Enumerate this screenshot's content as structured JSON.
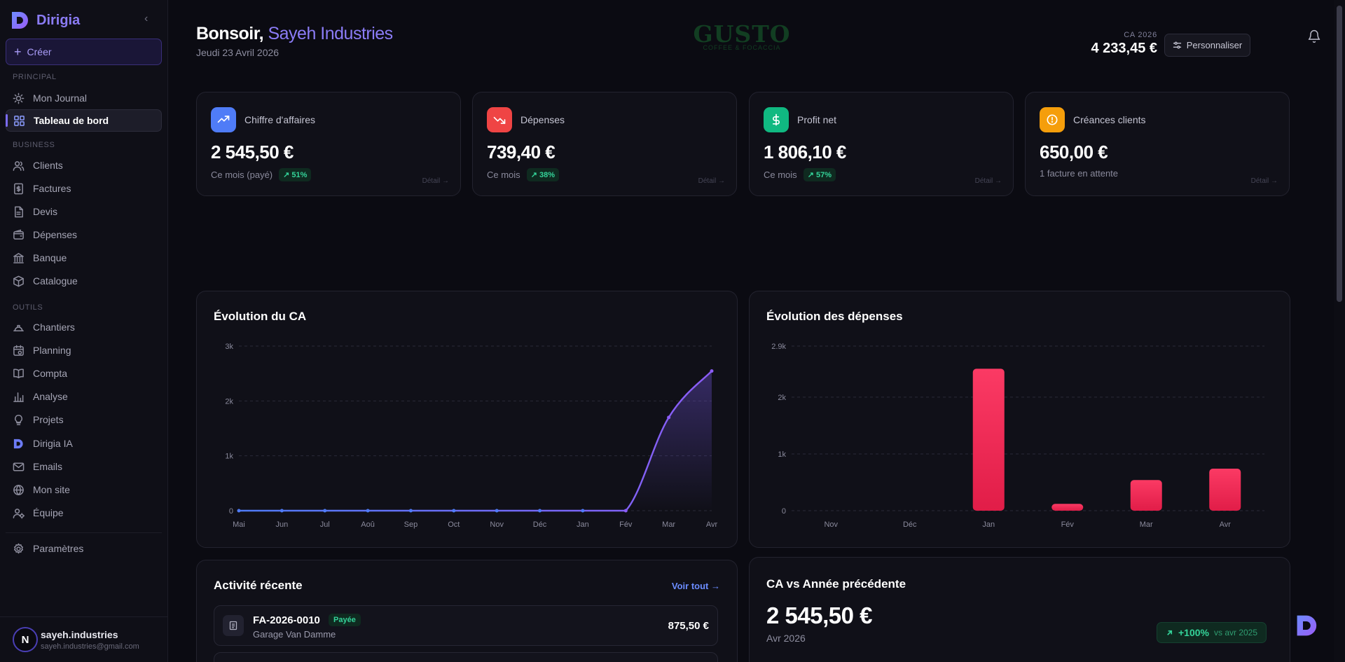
{
  "brand": {
    "name": "Dirigia"
  },
  "sidebar": {
    "create_label": "Créer",
    "sections": {
      "principal": "PRINCIPAL",
      "business": "BUSINESS",
      "outils": "OUTILS"
    },
    "items": [
      {
        "label": "Mon Journal",
        "icon": "sun-icon"
      },
      {
        "label": "Tableau de bord",
        "icon": "dashboard-icon",
        "active": true
      },
      {
        "label": "Clients",
        "icon": "users-icon"
      },
      {
        "label": "Factures",
        "icon": "invoice-icon"
      },
      {
        "label": "Devis",
        "icon": "document-icon"
      },
      {
        "label": "Dépenses",
        "icon": "wallet-icon"
      },
      {
        "label": "Banque",
        "icon": "bank-icon"
      },
      {
        "label": "Catalogue",
        "icon": "box-icon"
      },
      {
        "label": "Chantiers",
        "icon": "helmet-icon"
      },
      {
        "label": "Planning",
        "icon": "calendar-icon"
      },
      {
        "label": "Compta",
        "icon": "book-icon"
      },
      {
        "label": "Analyse",
        "icon": "bar-chart-icon"
      },
      {
        "label": "Projets",
        "icon": "lightbulb-icon"
      },
      {
        "label": "Dirigia IA",
        "icon": "dirigia-logo-icon"
      },
      {
        "label": "Emails",
        "icon": "mail-icon"
      },
      {
        "label": "Mon site",
        "icon": "globe-icon"
      },
      {
        "label": "Équipe",
        "icon": "team-icon"
      },
      {
        "label": "Paramètres",
        "icon": "gear-icon"
      }
    ],
    "user": {
      "initial": "N",
      "name": "sayeh.industries",
      "email": "sayeh.industries@gmail.com"
    }
  },
  "header": {
    "greeting": "Bonsoir,",
    "company": "Sayeh Industries",
    "date": "Jeudi 23 Avril 2026",
    "logo_word": "GUSTO",
    "logo_sub": "COFFEE & FOCACCIA",
    "ca_label": "CA 2026",
    "ca_value": "4 233,45 €",
    "customize_label": "Personnaliser"
  },
  "kpis": [
    {
      "title": "Chiffre d'affaires",
      "value": "2 545,50 €",
      "sub": "Ce mois (payé)",
      "badge": "↗ 51%",
      "detail": "Détail →",
      "color": "#4f7cf7",
      "icon": "trend-up-icon"
    },
    {
      "title": "Dépenses",
      "value": "739,40 €",
      "sub": "Ce mois",
      "badge": "↗ 38%",
      "detail": "Détail →",
      "color": "#ef4444",
      "icon": "trend-down-icon"
    },
    {
      "title": "Profit net",
      "value": "1 806,10 €",
      "sub": "Ce mois",
      "badge": "↗ 57%",
      "detail": "Détail →",
      "color": "#10b981",
      "icon": "dollar-icon"
    },
    {
      "title": "Créances clients",
      "value": "650,00 €",
      "sub": "1 facture en attente",
      "badge": "",
      "detail": "Détail →",
      "color": "#f59e0b",
      "icon": "clock-icon"
    }
  ],
  "charts": {
    "ca_title": "Évolution du CA",
    "dep_title": "Évolution des dépenses"
  },
  "chart_data": [
    {
      "type": "area",
      "title": "Évolution du CA",
      "x": [
        "Mai",
        "Jun",
        "Jul",
        "Aoû",
        "Sep",
        "Oct",
        "Nov",
        "Déc",
        "Jan",
        "Fév",
        "Mar",
        "Avr"
      ],
      "values": [
        0,
        0,
        0,
        0,
        0,
        0,
        0,
        0,
        0,
        0,
        1700,
        2545.5
      ],
      "yticks": [
        "0",
        "1k",
        "2k",
        "3k"
      ],
      "ylim": [
        0,
        3000
      ],
      "grid": true
    },
    {
      "type": "bar",
      "title": "Évolution des dépenses",
      "categories": [
        "Nov",
        "Déc",
        "Jan",
        "Fév",
        "Mar",
        "Avr"
      ],
      "values": [
        0,
        0,
        2500,
        120,
        540,
        740
      ],
      "yticks": [
        "0",
        "1k",
        "2k",
        "2.9k"
      ],
      "ylim": [
        0,
        2900
      ],
      "grid": true
    }
  ],
  "activity": {
    "title": "Activité récente",
    "see_all": "Voir tout →",
    "rows": [
      {
        "code": "FA-2026-0010",
        "status": "Payée",
        "client": "Garage Van Damme",
        "amount": "875,50 €"
      }
    ]
  },
  "comparison": {
    "title": "CA vs Année précédente",
    "value": "2 545,50 €",
    "month": "Avr 2026",
    "pct": "+100%",
    "vs_label": "vs avr 2025"
  }
}
